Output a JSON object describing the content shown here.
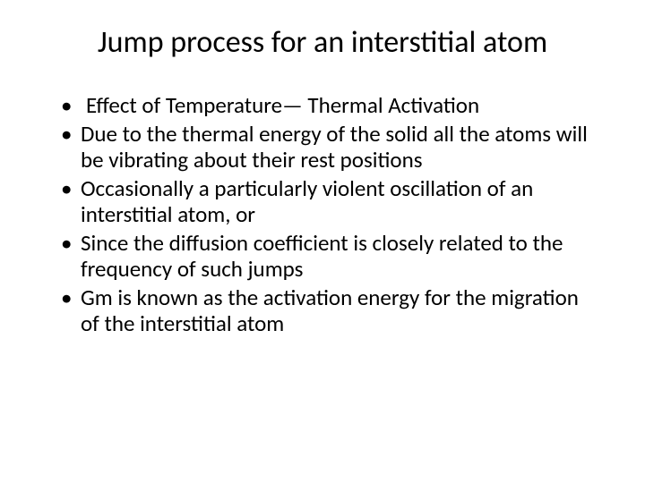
{
  "slide": {
    "title": "Jump process for an interstitial atom",
    "bullets": [
      " Effect of Temperature— Thermal Activation",
      "Due to the thermal energy of the solid all the atoms will be vibrating about their rest positions",
      "Occasionally a particularly violent oscillation of an interstitial atom, or",
      " Since the diffusion coefficient is closely related to the frequency of such jumps",
      "Gm is known as the activation energy for the migration of the interstitial atom"
    ]
  },
  "style": {
    "background_color": "#ffffff",
    "text_color": "#000000",
    "title_fontsize": 34,
    "body_fontsize": 25,
    "font_family": "Calibri"
  }
}
